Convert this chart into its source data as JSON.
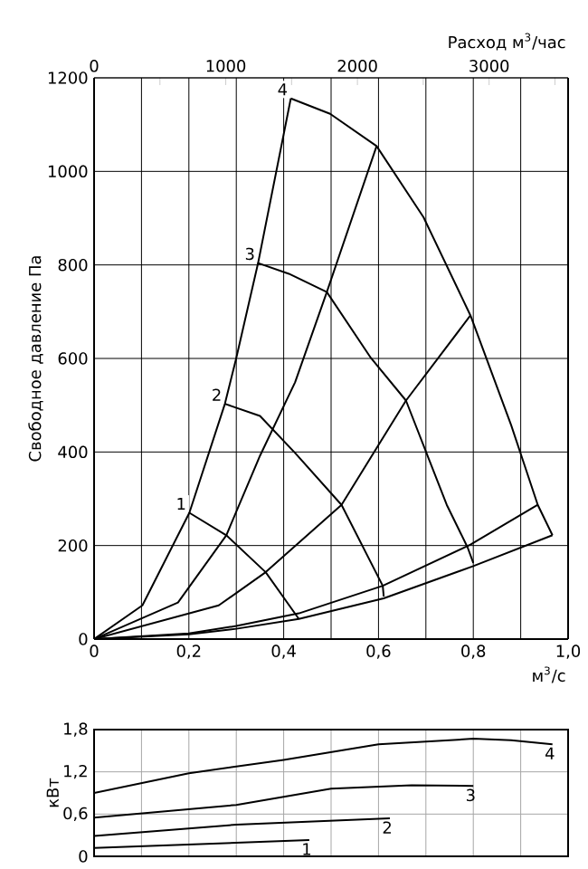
{
  "chart_data": [
    {
      "type": "line",
      "xlabel": "м$^{3}$/с",
      "ylabel": "Свободное давление Па",
      "x2label": "Расход м$^{3}$/час",
      "xlim": [
        0,
        1.0
      ],
      "ylim": [
        0,
        1200
      ],
      "x2lim": [
        0,
        3600
      ],
      "xticks": [
        0,
        {
          "value": 0.1,
          "label": null
        },
        {
          "value": 0.2,
          "label": "0,2"
        },
        {
          "value": 0.3,
          "label": null
        },
        {
          "value": 0.4,
          "label": "0,4"
        },
        {
          "value": 0.5,
          "label": null
        },
        {
          "value": 0.6,
          "label": "0,6"
        },
        {
          "value": 0.7,
          "label": null
        },
        {
          "value": 0.8,
          "label": "0,8"
        },
        {
          "value": 0.9,
          "label": null
        },
        {
          "value": 1.0,
          "label": "1,0"
        }
      ],
      "yticks": [
        0,
        200,
        400,
        600,
        800,
        1000,
        1200
      ],
      "x2ticks": [
        0,
        {
          "value": 500,
          "label": null
        },
        1000,
        {
          "value": 1500,
          "label": null
        },
        2000,
        {
          "value": 2500,
          "label": null
        },
        3000,
        {
          "value": 3500,
          "label": null
        }
      ],
      "grid": true,
      "series": [
        {
          "name": "1",
          "color": "#000000",
          "x": [
            0.201,
            0.279,
            0.362,
            0.432
          ],
          "values": [
            270,
            222,
            143,
            43
          ]
        },
        {
          "name": "2",
          "color": "#000000",
          "x": [
            0.276,
            0.35,
            0.424,
            0.522,
            0.609,
            0.611
          ],
          "values": [
            503,
            477,
            398,
            287,
            114,
            91
          ]
        },
        {
          "name": "3",
          "color": "#000000",
          "x": [
            0.346,
            0.411,
            0.491,
            0.584,
            0.658,
            0.744,
            0.788,
            0.8
          ],
          "values": [
            804,
            781,
            742,
            601,
            510,
            287,
            196,
            163
          ]
        },
        {
          "name": "4",
          "color": "#000000",
          "x": [
            0.415,
            0.498,
            0.596,
            0.695,
            0.794,
            0.88,
            0.936,
            0.967
          ],
          "values": [
            1156,
            1123,
            1054,
            902,
            692,
            457,
            287,
            222
          ]
        },
        {
          "color": "#000000",
          "x": [
            0,
            0.102,
            0.177,
            0.201,
            0.276,
            0.3,
            0.346,
            0.415
          ],
          "values": [
            0,
            72,
            222,
            270,
            503,
            601,
            804,
            1156
          ]
        },
        {
          "color": "#000000",
          "x": [
            0,
            0.177,
            0.279,
            0.35,
            0.424,
            0.491,
            0.596
          ],
          "values": [
            0,
            78,
            222,
            392,
            549,
            742,
            1054
          ]
        },
        {
          "color": "#000000",
          "x": [
            0,
            0.263,
            0.362,
            0.522,
            0.658,
            0.794
          ],
          "values": [
            0,
            72,
            143,
            287,
            510,
            692
          ]
        },
        {
          "color": "#000000",
          "x": [
            0,
            0.2,
            0.3,
            0.432,
            0.609,
            0.794,
            0.936
          ],
          "values": [
            0,
            12,
            28,
            55,
            114,
            202,
            287
          ]
        },
        {
          "color": "#000000",
          "x": [
            0,
            0.2,
            0.3,
            0.432,
            0.611,
            0.8,
            0.967
          ],
          "values": [
            0,
            10,
            22,
            43,
            87,
            156,
            222
          ]
        }
      ]
    },
    {
      "type": "line",
      "ylabel": "кВт",
      "xlim": [
        0,
        1.0
      ],
      "ylim": [
        0,
        1.8
      ],
      "xticks": [
        {
          "value": 0.1,
          "label": null
        },
        {
          "value": 0.2,
          "label": null
        },
        {
          "value": 0.3,
          "label": null
        },
        {
          "value": 0.4,
          "label": null
        },
        {
          "value": 0.5,
          "label": null
        },
        {
          "value": 0.6,
          "label": null
        },
        {
          "value": 0.7,
          "label": null
        },
        {
          "value": 0.8,
          "label": null
        },
        {
          "value": 0.9,
          "label": null
        }
      ],
      "yticks": [
        0,
        {
          "value": 0.6,
          "label": "0,6"
        },
        {
          "value": 1.2,
          "label": "1,2"
        },
        {
          "value": 1.8,
          "label": "1,8"
        }
      ],
      "tick_labels": "y",
      "grid": true,
      "series": [
        {
          "name": "1",
          "color": "#000000",
          "x": [
            0,
            0.454
          ],
          "values": [
            0.12,
            0.23
          ]
        },
        {
          "name": "2",
          "color": "#000000",
          "x": [
            0,
            0.3,
            0.624
          ],
          "values": [
            0.29,
            0.45,
            0.54
          ]
        },
        {
          "name": "3",
          "color": "#000000",
          "x": [
            0,
            0.3,
            0.5,
            0.67,
            0.8
          ],
          "values": [
            0.55,
            0.73,
            0.96,
            1.01,
            1.0
          ]
        },
        {
          "name": "4",
          "color": "#000000",
          "x": [
            0,
            0.2,
            0.4,
            0.6,
            0.8,
            0.88,
            0.967
          ],
          "values": [
            0.9,
            1.18,
            1.37,
            1.59,
            1.67,
            1.65,
            1.59
          ]
        }
      ]
    }
  ]
}
